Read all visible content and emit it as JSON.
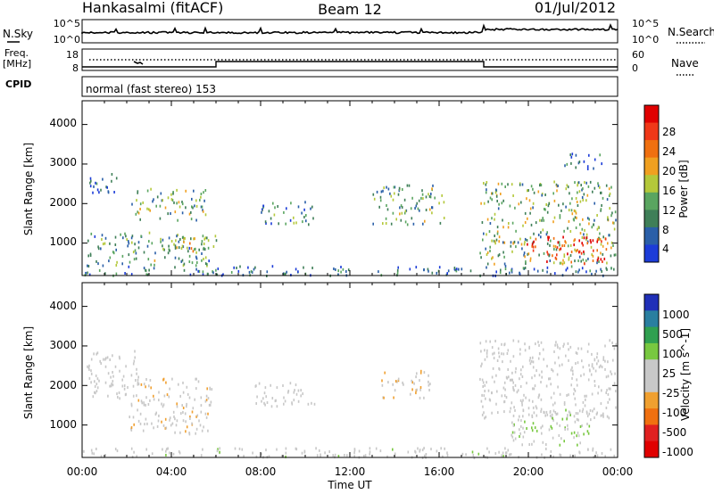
{
  "header": {
    "station": "Hankasalmi (fitACF)",
    "beam": "Beam 12",
    "date": "01/Jul/2012"
  },
  "panels": {
    "nsky": {
      "label": "N.Sky",
      "ticks_left": [
        "10^5",
        "10^0"
      ],
      "ticks_right": [
        "10^5",
        "10^0"
      ],
      "right_label": "N.Search"
    },
    "freq": {
      "label_line1": "Freq.",
      "label_line2": "[MHz]",
      "ticks_left": [
        "18",
        "8"
      ],
      "ticks_right": [
        "60",
        "0"
      ],
      "right_label": "Nave"
    },
    "cpid": {
      "label": "CPID",
      "mode_text": "normal (fast stereo) 153"
    }
  },
  "colors": {
    "power": [
      "#1c3cd8",
      "#2a5fa8",
      "#3f7f58",
      "#5aa560",
      "#b4c83a",
      "#f0a020",
      "#f07010",
      "#f03818",
      "#e00000"
    ],
    "velocity": [
      "#2030b8",
      "#2a7fa0",
      "#30a050",
      "#78c840",
      "#c8c8c8",
      "#c8c8c8",
      "#f0a030",
      "#f07010",
      "#e02020",
      "#e00000"
    ]
  },
  "chart_data": [
    {
      "type": "heatmap",
      "title": "",
      "ylabel": "Slant Range [km]",
      "xlabel": "",
      "xlim": [
        "00:00",
        "24:00"
      ],
      "ylim": [
        180,
        4600
      ],
      "x_ticks": [
        "00:00",
        "04:00",
        "08:00",
        "12:00",
        "16:00",
        "20:00",
        "00:00"
      ],
      "y_ticks": [
        1000,
        2000,
        3000,
        4000
      ],
      "colorbar": {
        "label": "Power [dB]",
        "ticks": [
          "4",
          "8",
          "12",
          "16",
          "20",
          "24",
          "28"
        ],
        "range": [
          0,
          30
        ]
      },
      "regions": [
        {
          "t0": 0.0,
          "t1": 23.9,
          "r0": 200,
          "r1": 450,
          "value": 6
        },
        {
          "t0": 0.2,
          "t1": 6.0,
          "r0": 450,
          "r1": 1300,
          "value": 10
        },
        {
          "t0": 0.3,
          "t1": 1.6,
          "r0": 2200,
          "r1": 2800,
          "value": 4
        },
        {
          "t0": 2.2,
          "t1": 5.6,
          "r0": 1600,
          "r1": 2400,
          "value": 12
        },
        {
          "t0": 4.0,
          "t1": 5.8,
          "r0": 700,
          "r1": 1200,
          "value": 14
        },
        {
          "t0": 8.0,
          "t1": 10.4,
          "r0": 1500,
          "r1": 2100,
          "value": 8
        },
        {
          "t0": 13.0,
          "t1": 16.2,
          "r0": 1500,
          "r1": 2500,
          "value": 10
        },
        {
          "t0": 17.8,
          "t1": 23.9,
          "r0": 500,
          "r1": 2600,
          "value": 12
        },
        {
          "t0": 19.8,
          "t1": 23.6,
          "r0": 500,
          "r1": 1200,
          "value": 26
        },
        {
          "t0": 21.6,
          "t1": 23.4,
          "r0": 2900,
          "r1": 3300,
          "value": 4
        }
      ]
    },
    {
      "type": "heatmap",
      "title": "",
      "ylabel": "Slant Range [km]",
      "xlabel": "Time UT",
      "xlim": [
        "00:00",
        "24:00"
      ],
      "ylim": [
        180,
        4600
      ],
      "x_ticks": [
        "00:00",
        "04:00",
        "08:00",
        "12:00",
        "16:00",
        "20:00",
        "00:00"
      ],
      "y_ticks": [
        1000,
        2000,
        3000,
        4000
      ],
      "colorbar": {
        "label": "Velocity [m s^-1]",
        "ticks": [
          "1000",
          "500",
          "100",
          "25",
          "-25",
          "-100",
          "-500",
          "-1000"
        ],
        "range": [
          -1200,
          1200
        ]
      },
      "regions": [
        {
          "t0": 0.0,
          "t1": 23.9,
          "r0": 200,
          "r1": 450,
          "value": 60
        },
        {
          "t0": 0.2,
          "t1": 2.6,
          "r0": 1700,
          "r1": 2900,
          "value": 0
        },
        {
          "t0": 2.0,
          "t1": 5.8,
          "r0": 800,
          "r1": 2200,
          "value": -120
        },
        {
          "t0": 7.6,
          "t1": 10.4,
          "r0": 1500,
          "r1": 2100,
          "value": 0
        },
        {
          "t0": 13.4,
          "t1": 15.6,
          "r0": 1700,
          "r1": 2400,
          "value": -150
        },
        {
          "t0": 17.8,
          "t1": 23.9,
          "r0": 1200,
          "r1": 3200,
          "value": 0
        },
        {
          "t0": 19.2,
          "t1": 22.8,
          "r0": 500,
          "r1": 1500,
          "value": 150
        }
      ]
    }
  ]
}
